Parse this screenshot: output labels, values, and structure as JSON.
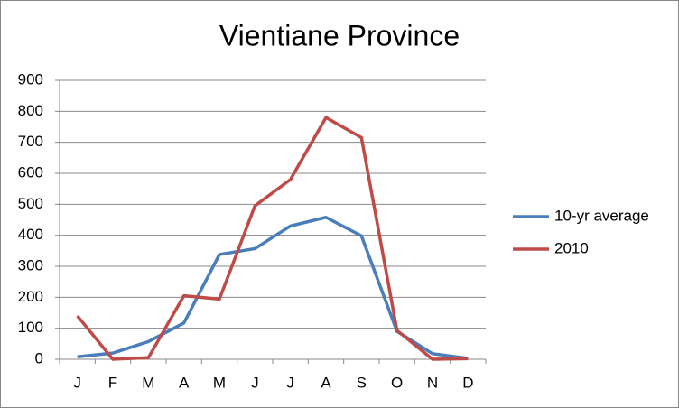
{
  "chart_data": {
    "type": "line",
    "title": "Vientiane Province",
    "categories": [
      "J",
      "F",
      "M",
      "A",
      "M",
      "J",
      "J",
      "A",
      "S",
      "O",
      "N",
      "D"
    ],
    "series": [
      {
        "name": "10-yr average",
        "color": "#4a7ebb",
        "values": [
          8,
          20,
          57,
          117,
          338,
          357,
          430,
          458,
          398,
          90,
          18,
          3
        ]
      },
      {
        "name": "2010",
        "color": "#be4b48",
        "values": [
          140,
          0,
          5,
          205,
          194,
          495,
          580,
          780,
          715,
          93,
          0,
          2
        ]
      }
    ],
    "ylim": [
      0,
      900
    ],
    "yticks": [
      0,
      100,
      200,
      300,
      400,
      500,
      600,
      700,
      800,
      900
    ],
    "grid": true,
    "legend": "right"
  }
}
